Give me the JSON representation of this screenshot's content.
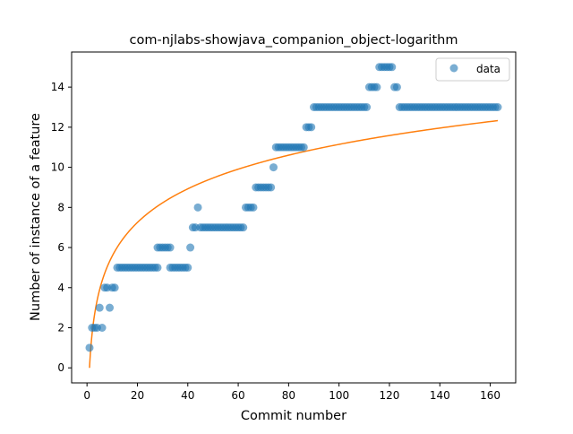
{
  "chart_data": {
    "type": "scatter",
    "title": "com-njlabs-showjava_companion_object-logarithm",
    "xlabel": "Commit number",
    "ylabel": "Number of instance of a feature",
    "xlim": [
      -6.1,
      170.1
    ],
    "ylim": [
      -0.75,
      15.75
    ],
    "xticks": [
      0,
      20,
      40,
      60,
      80,
      100,
      120,
      140,
      160
    ],
    "yticks": [
      0,
      2,
      4,
      6,
      8,
      10,
      12,
      14
    ],
    "legend": {
      "position": "top-right",
      "entries": [
        "data"
      ]
    },
    "colors": {
      "data": "#1f77b4",
      "fit": "#ff7f0e"
    },
    "series": [
      {
        "name": "data",
        "kind": "scatter",
        "points": [
          [
            1,
            1
          ],
          [
            2,
            2
          ],
          [
            3,
            2
          ],
          [
            4,
            2
          ],
          [
            5,
            3
          ],
          [
            6,
            2
          ],
          [
            7,
            4
          ],
          [
            8,
            4
          ],
          [
            9,
            3
          ],
          [
            10,
            4
          ],
          [
            11,
            4
          ],
          [
            12,
            5
          ],
          [
            13,
            5
          ],
          [
            14,
            5
          ],
          [
            15,
            5
          ],
          [
            16,
            5
          ],
          [
            17,
            5
          ],
          [
            18,
            5
          ],
          [
            19,
            5
          ],
          [
            20,
            5
          ],
          [
            21,
            5
          ],
          [
            22,
            5
          ],
          [
            23,
            5
          ],
          [
            24,
            5
          ],
          [
            25,
            5
          ],
          [
            26,
            5
          ],
          [
            27,
            5
          ],
          [
            28,
            5
          ],
          [
            28,
            6
          ],
          [
            29,
            6
          ],
          [
            30,
            6
          ],
          [
            31,
            6
          ],
          [
            32,
            6
          ],
          [
            33,
            6
          ],
          [
            33,
            5
          ],
          [
            34,
            5
          ],
          [
            35,
            5
          ],
          [
            36,
            5
          ],
          [
            37,
            5
          ],
          [
            38,
            5
          ],
          [
            39,
            5
          ],
          [
            40,
            5
          ],
          [
            41,
            6
          ],
          [
            42,
            7
          ],
          [
            43,
            7
          ],
          [
            44,
            8
          ],
          [
            45,
            7
          ],
          [
            46,
            7
          ],
          [
            47,
            7
          ],
          [
            48,
            7
          ],
          [
            49,
            7
          ],
          [
            50,
            7
          ],
          [
            51,
            7
          ],
          [
            52,
            7
          ],
          [
            53,
            7
          ],
          [
            54,
            7
          ],
          [
            55,
            7
          ],
          [
            56,
            7
          ],
          [
            57,
            7
          ],
          [
            58,
            7
          ],
          [
            59,
            7
          ],
          [
            60,
            7
          ],
          [
            61,
            7
          ],
          [
            62,
            7
          ],
          [
            63,
            8
          ],
          [
            64,
            8
          ],
          [
            65,
            8
          ],
          [
            66,
            8
          ],
          [
            67,
            9
          ],
          [
            68,
            9
          ],
          [
            69,
            9
          ],
          [
            70,
            9
          ],
          [
            71,
            9
          ],
          [
            72,
            9
          ],
          [
            73,
            9
          ],
          [
            74,
            10
          ],
          [
            75,
            11
          ],
          [
            76,
            11
          ],
          [
            77,
            11
          ],
          [
            78,
            11
          ],
          [
            79,
            11
          ],
          [
            80,
            11
          ],
          [
            81,
            11
          ],
          [
            82,
            11
          ],
          [
            83,
            11
          ],
          [
            84,
            11
          ],
          [
            85,
            11
          ],
          [
            86,
            11
          ],
          [
            87,
            12
          ],
          [
            88,
            12
          ],
          [
            89,
            12
          ],
          [
            90,
            13
          ],
          [
            91,
            13
          ],
          [
            92,
            13
          ],
          [
            93,
            13
          ],
          [
            94,
            13
          ],
          [
            95,
            13
          ],
          [
            96,
            13
          ],
          [
            97,
            13
          ],
          [
            98,
            13
          ],
          [
            99,
            13
          ],
          [
            100,
            13
          ],
          [
            101,
            13
          ],
          [
            102,
            13
          ],
          [
            103,
            13
          ],
          [
            104,
            13
          ],
          [
            105,
            13
          ],
          [
            106,
            13
          ],
          [
            107,
            13
          ],
          [
            108,
            13
          ],
          [
            109,
            13
          ],
          [
            110,
            13
          ],
          [
            111,
            13
          ],
          [
            112,
            14
          ],
          [
            113,
            14
          ],
          [
            114,
            14
          ],
          [
            115,
            14
          ],
          [
            116,
            15
          ],
          [
            117,
            15
          ],
          [
            118,
            15
          ],
          [
            119,
            15
          ],
          [
            120,
            15
          ],
          [
            121,
            15
          ],
          [
            122,
            14
          ],
          [
            123,
            14
          ],
          [
            124,
            13
          ],
          [
            125,
            13
          ],
          [
            126,
            13
          ],
          [
            127,
            13
          ],
          [
            128,
            13
          ],
          [
            129,
            13
          ],
          [
            130,
            13
          ],
          [
            131,
            13
          ],
          [
            132,
            13
          ],
          [
            133,
            13
          ],
          [
            134,
            13
          ],
          [
            135,
            13
          ],
          [
            136,
            13
          ],
          [
            137,
            13
          ],
          [
            138,
            13
          ],
          [
            139,
            13
          ],
          [
            140,
            13
          ],
          [
            141,
            13
          ],
          [
            142,
            13
          ],
          [
            143,
            13
          ],
          [
            144,
            13
          ],
          [
            145,
            13
          ],
          [
            146,
            13
          ],
          [
            147,
            13
          ],
          [
            148,
            13
          ],
          [
            149,
            13
          ],
          [
            150,
            13
          ],
          [
            151,
            13
          ],
          [
            152,
            13
          ],
          [
            153,
            13
          ],
          [
            154,
            13
          ],
          [
            155,
            13
          ],
          [
            156,
            13
          ],
          [
            157,
            13
          ],
          [
            158,
            13
          ],
          [
            159,
            13
          ],
          [
            160,
            13
          ],
          [
            161,
            13
          ],
          [
            162,
            13
          ],
          [
            163,
            13
          ]
        ]
      },
      {
        "kind": "line",
        "function": "logarithmic",
        "a": 2.42,
        "b": 0.0,
        "x_range": [
          1,
          163
        ]
      }
    ]
  }
}
